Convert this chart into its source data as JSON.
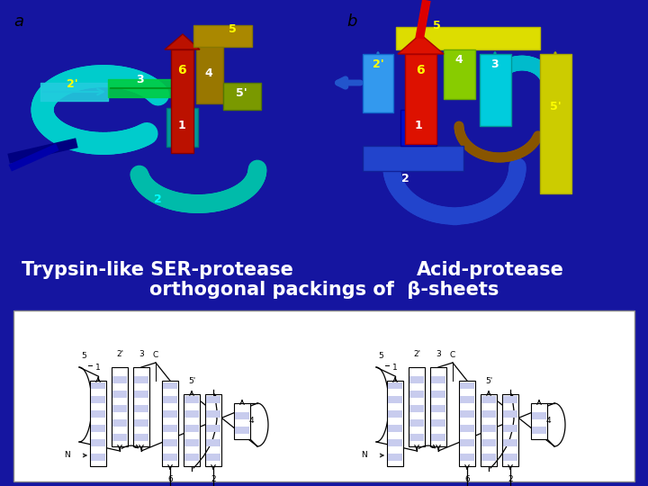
{
  "bg_top": "#ffffff",
  "bg_bottom": "#1515a0",
  "bg_diagram": "#f0f0f0",
  "label_a": "a",
  "label_b": "b",
  "title_left": "Trypsin-like SER-protease",
  "title_right": "Acid-protease",
  "title_center": "orthogonal packings of  β-sheets",
  "title_color": "#ffffff",
  "title_fontsize": 15,
  "strand_fill": "#c8ccee",
  "strand_edge": "#000000",
  "fig_width": 7.2,
  "fig_height": 5.4
}
